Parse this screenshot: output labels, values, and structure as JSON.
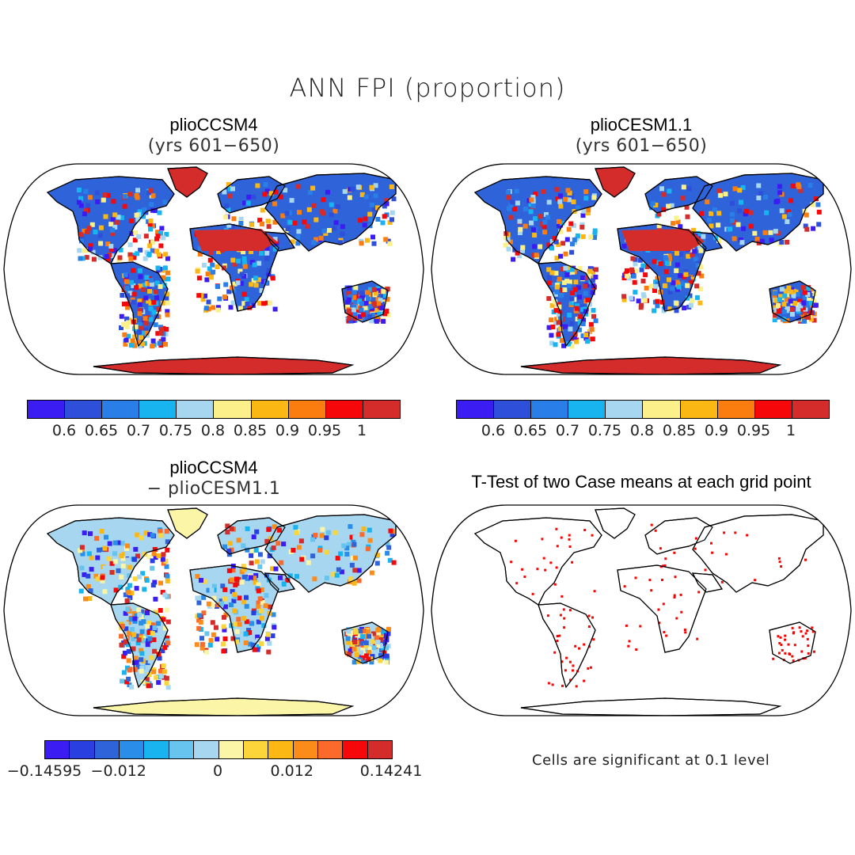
{
  "title": "ANN FPI (proportion)",
  "panels": [
    {
      "title": "plioCCSM4",
      "subtitle": "(yrs 601−650)"
    },
    {
      "title": "plioCESM1.1",
      "subtitle": "(yrs 601−650)"
    },
    {
      "title": "plioCCSM4",
      "subtitle": "− plioCESM1.1"
    },
    {
      "title": "T-Test of two Case means at each grid point",
      "subtitle": ""
    }
  ],
  "colorbar_abs": {
    "colors": [
      "#3b1cf2",
      "#2e4fd9",
      "#2a7ee8",
      "#17b4f0",
      "#a6d6f0",
      "#fbf08a",
      "#fbb814",
      "#fb7c0f",
      "#f5070a",
      "#d42b2b"
    ],
    "labels": [
      "0.6",
      "0.65",
      "0.7",
      "0.75",
      "0.8",
      "0.85",
      "0.9",
      "0.95",
      "1"
    ]
  },
  "colorbar_diff": {
    "colors": [
      "#3b1cf2",
      "#2a3fe0",
      "#2e63d9",
      "#2a8ee8",
      "#17b4f0",
      "#67c4ee",
      "#a6d6f0",
      "#fbf5a8",
      "#fbd53a",
      "#fbb814",
      "#fb8c1a",
      "#fb6a2a",
      "#f5070a",
      "#d42b2b"
    ],
    "labels": [
      "−0.14595",
      "−0.012",
      "0",
      "0.012",
      "0.14241"
    ]
  },
  "significance_note": "Cells are significant at 0.1 level",
  "colors": {
    "land_high": "#d42b2b",
    "land_blue": "#2e63d9",
    "significant_cells": "#ff0000"
  }
}
